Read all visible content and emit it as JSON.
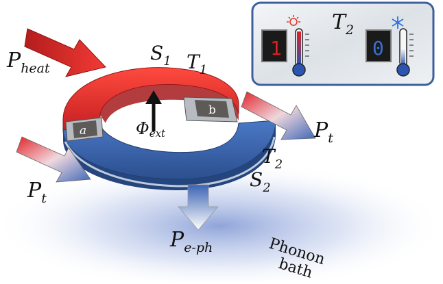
{
  "labels": {
    "p_heat": {
      "main": "P",
      "sub": "heat"
    },
    "s1": {
      "main": "S",
      "sub": "1"
    },
    "t1": {
      "main": "T",
      "sub": "1"
    },
    "t2": {
      "main": "T",
      "sub": "2"
    },
    "s2": {
      "main": "S",
      "sub": "2"
    },
    "p_t_left": {
      "main": "P",
      "sub": "t"
    },
    "p_t_right": {
      "main": "P",
      "sub": "t"
    },
    "p_eph": {
      "main": "P",
      "sub": "e-ph"
    },
    "phi_ext": {
      "main": "Φ",
      "sub": "ext"
    },
    "junction_a": "a",
    "junction_b": "b",
    "phonon_bath": [
      "Phonon",
      "bath"
    ]
  },
  "inset": {
    "title": {
      "main": "T",
      "sub": "2"
    },
    "hot_display_digit": "1",
    "cold_display_digit": "0",
    "hot_symbol": "sun-icon",
    "cold_symbol": "snowflake-icon"
  },
  "colors": {
    "hot": "#d8272a",
    "cold": "#2f5aa0",
    "inset_border": "#3d5f9e",
    "bath": "#7f98d6"
  }
}
